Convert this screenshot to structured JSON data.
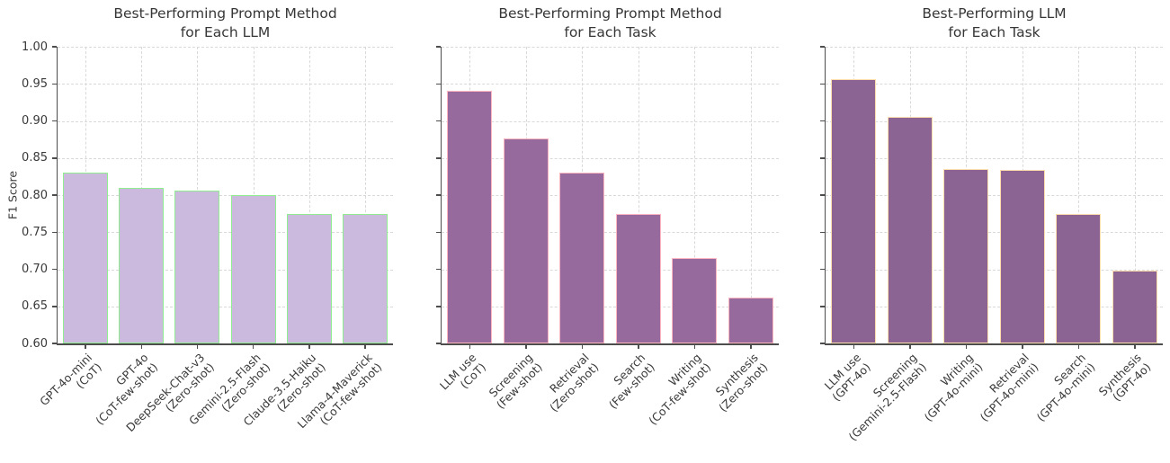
{
  "figure": {
    "background": "#ffffff",
    "text_color": "#3a3a3a",
    "grid_color": "#d9d9d9",
    "spine_color": "#4d4d4d"
  },
  "chart_data": [
    {
      "type": "bar",
      "title": "Best-Performing Prompt Method\nfor Each LLM",
      "xlabel": "",
      "ylabel": "F1 Score",
      "ylim": [
        0.6,
        1.0
      ],
      "yticks": [
        0.6,
        0.65,
        0.7,
        0.75,
        0.8,
        0.85,
        0.9,
        0.95,
        1.0
      ],
      "ytick_labels": [
        "0.60",
        "0.65",
        "0.70",
        "0.75",
        "0.80",
        "0.85",
        "0.90",
        "0.95",
        "1.00"
      ],
      "show_ytick_labels": true,
      "grid": "dashed horizontal and vertical gridlines",
      "legend": "none",
      "bar_fill": "#cbb9de",
      "bar_edge": "#90ee90",
      "categories": [
        "GPT-4o-mini\n(CoT)",
        "GPT-4o\n(CoT-few-shot)",
        "DeepSeek-Chat-v3\n(Zero-shot)",
        "Gemini-2.5-Flash\n(Zero-shot)",
        "Claude-3.5-Haiku\n(Zero-shot)",
        "Llama-4-Maverick\n(CoT-few-shot)"
      ],
      "values": [
        0.83,
        0.81,
        0.806,
        0.8,
        0.775,
        0.774
      ]
    },
    {
      "type": "bar",
      "title": "Best-Performing Prompt Method\nfor Each Task",
      "xlabel": "",
      "ylabel": "",
      "ylim": [
        0.6,
        1.0
      ],
      "yticks": [
        0.6,
        0.65,
        0.7,
        0.75,
        0.8,
        0.85,
        0.9,
        0.95,
        1.0
      ],
      "ytick_labels": [],
      "show_ytick_labels": false,
      "grid": "dashed horizontal and vertical gridlines",
      "legend": "none",
      "bar_fill": "#976a9e",
      "bar_edge": "#ffb6c1",
      "categories": [
        "LLM use\n(CoT)",
        "Screening\n(Few-shot)",
        "Retrieval\n(Zero-shot)",
        "Search\n(Few-shot)",
        "Writing\n(CoT-few-shot)",
        "Synthesis\n(Zero-shot)"
      ],
      "values": [
        0.941,
        0.876,
        0.83,
        0.774,
        0.715,
        0.662
      ]
    },
    {
      "type": "bar",
      "title": "Best-Performing LLM\nfor Each Task",
      "xlabel": "",
      "ylabel": "",
      "ylim": [
        0.6,
        1.0
      ],
      "yticks": [
        0.6,
        0.65,
        0.7,
        0.75,
        0.8,
        0.85,
        0.9,
        0.95,
        1.0
      ],
      "ytick_labels": [],
      "show_ytick_labels": false,
      "grid": "dashed horizontal and vertical gridlines",
      "legend": "none",
      "bar_fill": "#8c6494",
      "bar_edge": "#ffdead",
      "categories": [
        "LLM use\n(GPT-4o)",
        "Screening\n(Gemini-2.5-Flash)",
        "Writing\n(GPT-4o-mini)",
        "Retrieval\n(GPT-4o-mini)",
        "Search\n(GPT-4o-mini)",
        "Synthesis\n(GPT-4o)"
      ],
      "values": [
        0.956,
        0.905,
        0.835,
        0.834,
        0.774,
        0.698
      ]
    }
  ]
}
